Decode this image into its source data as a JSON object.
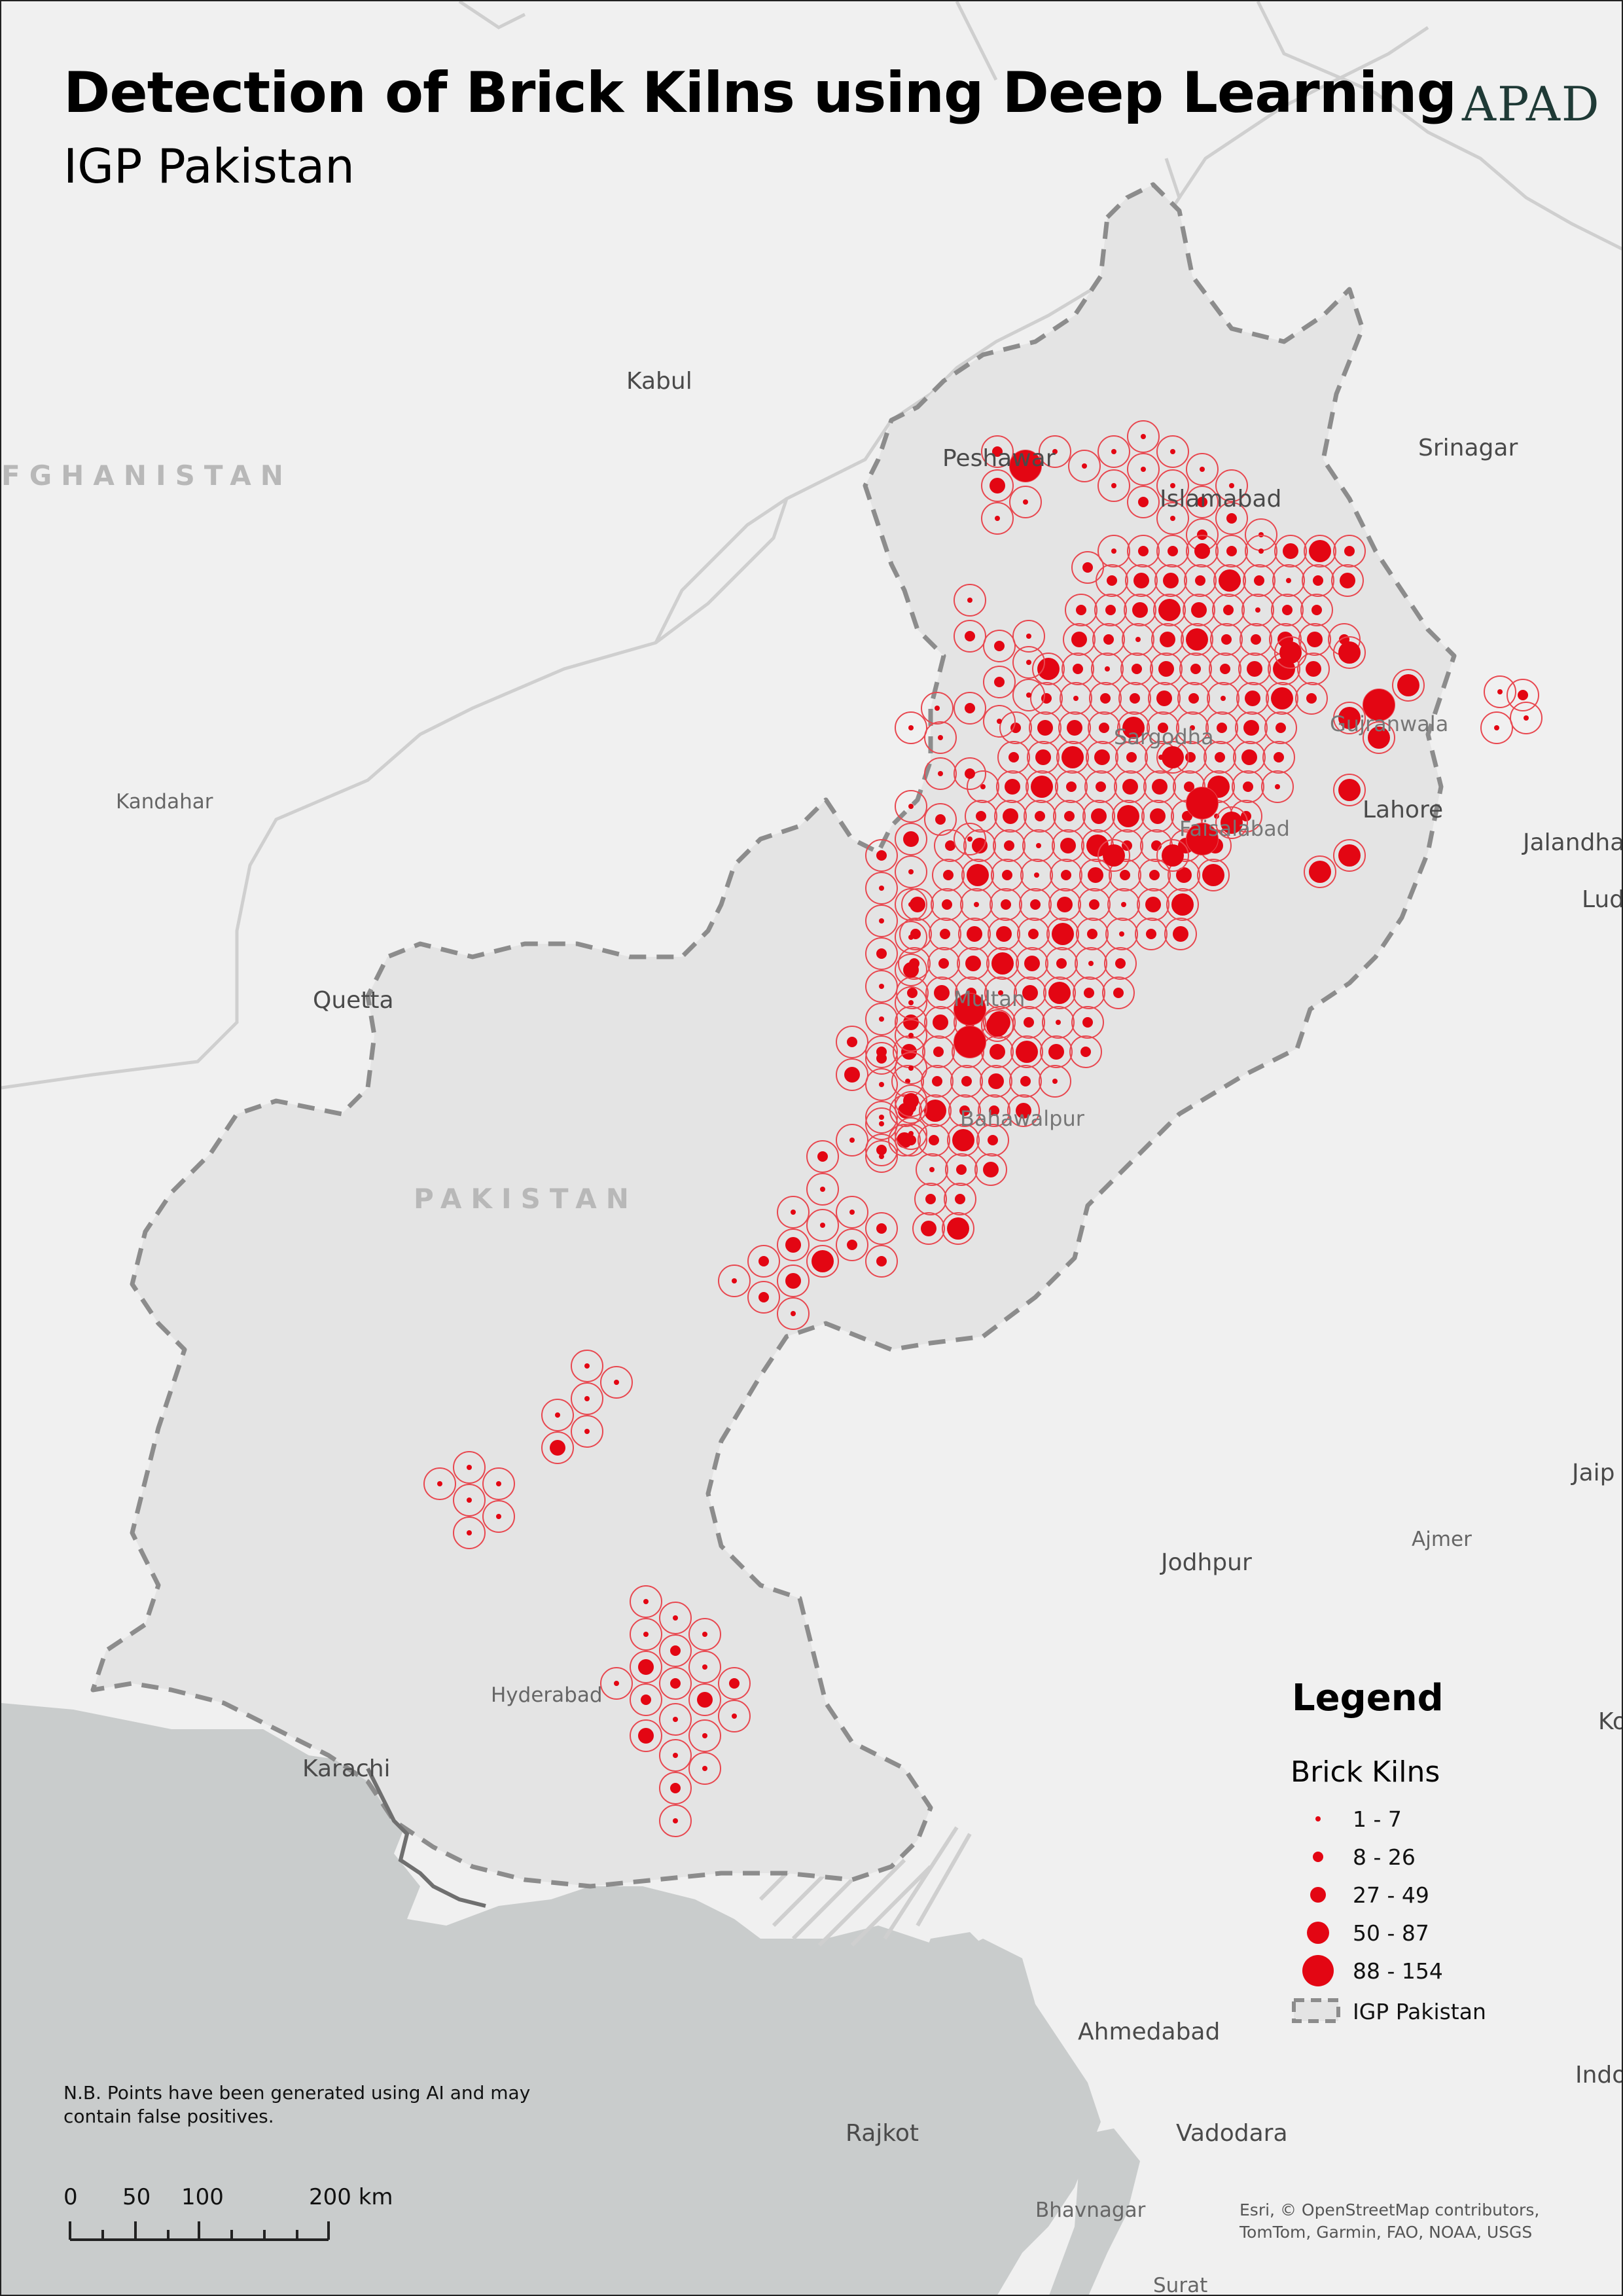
{
  "title": "Detection of Brick Kilns using Deep Learning",
  "subtitle": "IGP Pakistan",
  "logo_text": "APAD",
  "colors": {
    "kiln_fill": "#e30613",
    "kiln_ring": "#e8474f",
    "igp_fill": "#e4e4e4",
    "igp_border": "#8c8c8c",
    "sea": "#c9cccc",
    "land": "#f0f0f0"
  },
  "places": {
    "kabul": "Kabul",
    "srinagar": "Srinagar",
    "peshawar": "Peshawar",
    "islamabad": "Islamabad",
    "kandahar": "Kandahar",
    "quetta": "Quetta",
    "sargodha": "Sargodha",
    "gujranwala": "Gujranwala",
    "lahore": "Lahore",
    "faisalabad": "Faisalabad",
    "multan": "Multan",
    "jalandhar": "Jalandhar",
    "ludhiana": "Ludh",
    "bahawalpur": "Bahawalpur",
    "jaipur": "Jaip",
    "ajmer": "Ajmer",
    "jodhpur": "Jodhpur",
    "hyderabad": "Hyderabad",
    "karachi": "Karachi",
    "kota": "Ko",
    "ahmedabad": "Ahmedabad",
    "indore": "Indo",
    "rajkot": "Rajkot",
    "vadodara": "Vadodara",
    "bhavnagar": "Bhavnagar",
    "surat": "Surat"
  },
  "countries": {
    "afghanistan": "FGHANISTAN",
    "pakistan": "PAKISTAN"
  },
  "legend": {
    "title": "Legend",
    "layer": "Brick Kilns",
    "classes": [
      {
        "label": "1 - 7",
        "size_class": 1
      },
      {
        "label": "8 - 26",
        "size_class": 2
      },
      {
        "label": "27 - 49",
        "size_class": 3
      },
      {
        "label": "50 - 87",
        "size_class": 4
      },
      {
        "label": "88 - 154",
        "size_class": 5
      }
    ],
    "boundary_label": "IGP Pakistan"
  },
  "note": "N.B. Points have been generated using AI and may contain false positives.",
  "attribution": "Esri, © OpenStreetMap contributors, TomTom, Garmin, FAO, NOAA, USGS",
  "scale_bar": {
    "labels": [
      "0",
      "50",
      "100",
      "200 km"
    ]
  }
}
